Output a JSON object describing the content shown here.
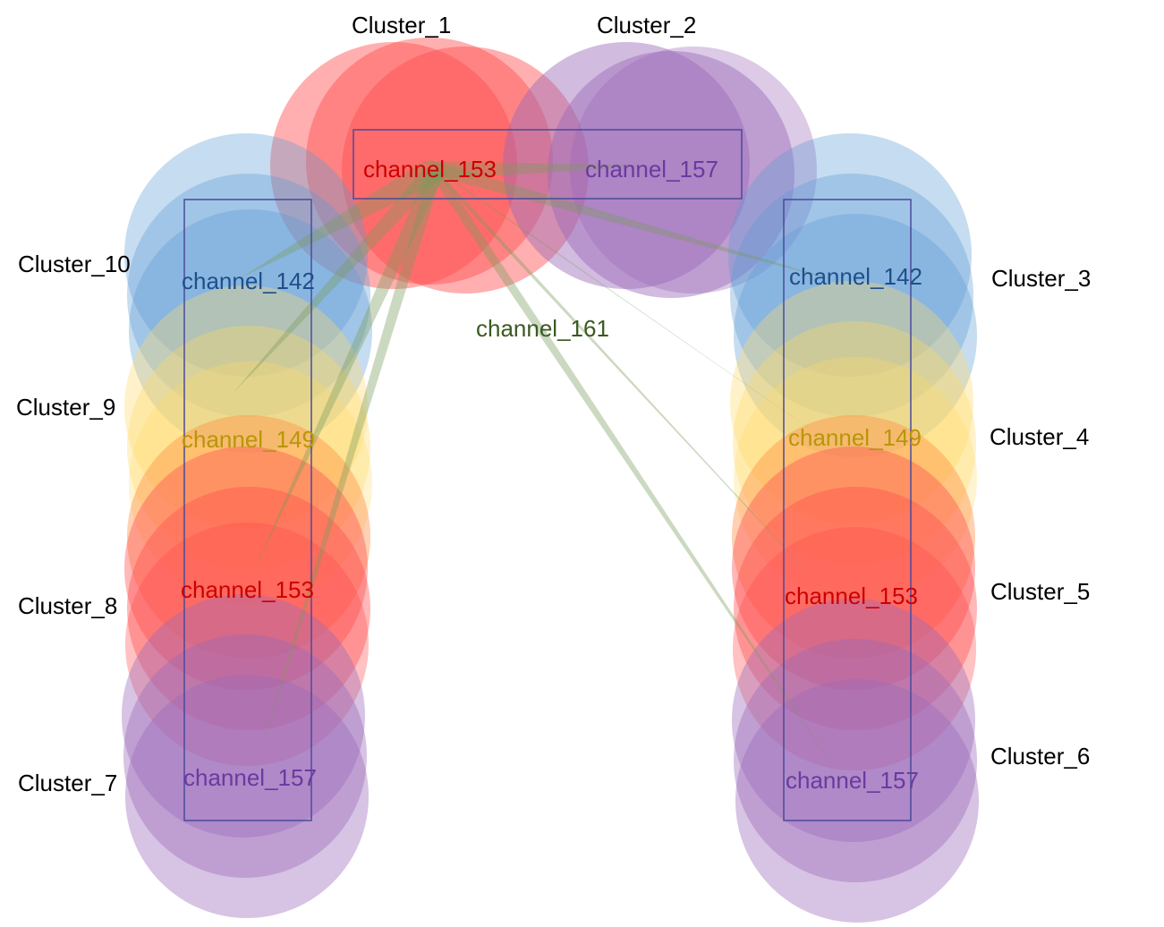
{
  "colors": {
    "red": "#ff4d4d",
    "purple": "#9a68b8",
    "blue": "#5b9bd5",
    "yellow": "#ffd966",
    "orange": "#ff8a3d",
    "edge": "#7a9a5c",
    "box": "#4a4a9a"
  },
  "label_colors": {
    "channel_153": "#cc0000",
    "channel_157": "#6a3aa0",
    "channel_142": "#1f4f8a",
    "channel_149": "#b8960a",
    "channel_161": "#3b5a22"
  },
  "clusters": [
    {
      "id": "c1",
      "label": "Cluster_1"
    },
    {
      "id": "c2",
      "label": "Cluster_2"
    },
    {
      "id": "c3",
      "label": "Cluster_3"
    },
    {
      "id": "c4",
      "label": "Cluster_4"
    },
    {
      "id": "c5",
      "label": "Cluster_5"
    },
    {
      "id": "c6",
      "label": "Cluster_6"
    },
    {
      "id": "c7",
      "label": "Cluster_7"
    },
    {
      "id": "c8",
      "label": "Cluster_8"
    },
    {
      "id": "c9",
      "label": "Cluster_9"
    },
    {
      "id": "c10",
      "label": "Cluster_10"
    }
  ],
  "channels": {
    "top_153": "channel_153",
    "top_157": "channel_157",
    "right_142": "channel_142",
    "right_149": "channel_149",
    "right_153": "channel_153",
    "right_157": "channel_157",
    "left_142": "channel_142",
    "left_149": "channel_149",
    "left_153": "channel_153",
    "left_157": "channel_157",
    "center_161": "channel_161"
  }
}
